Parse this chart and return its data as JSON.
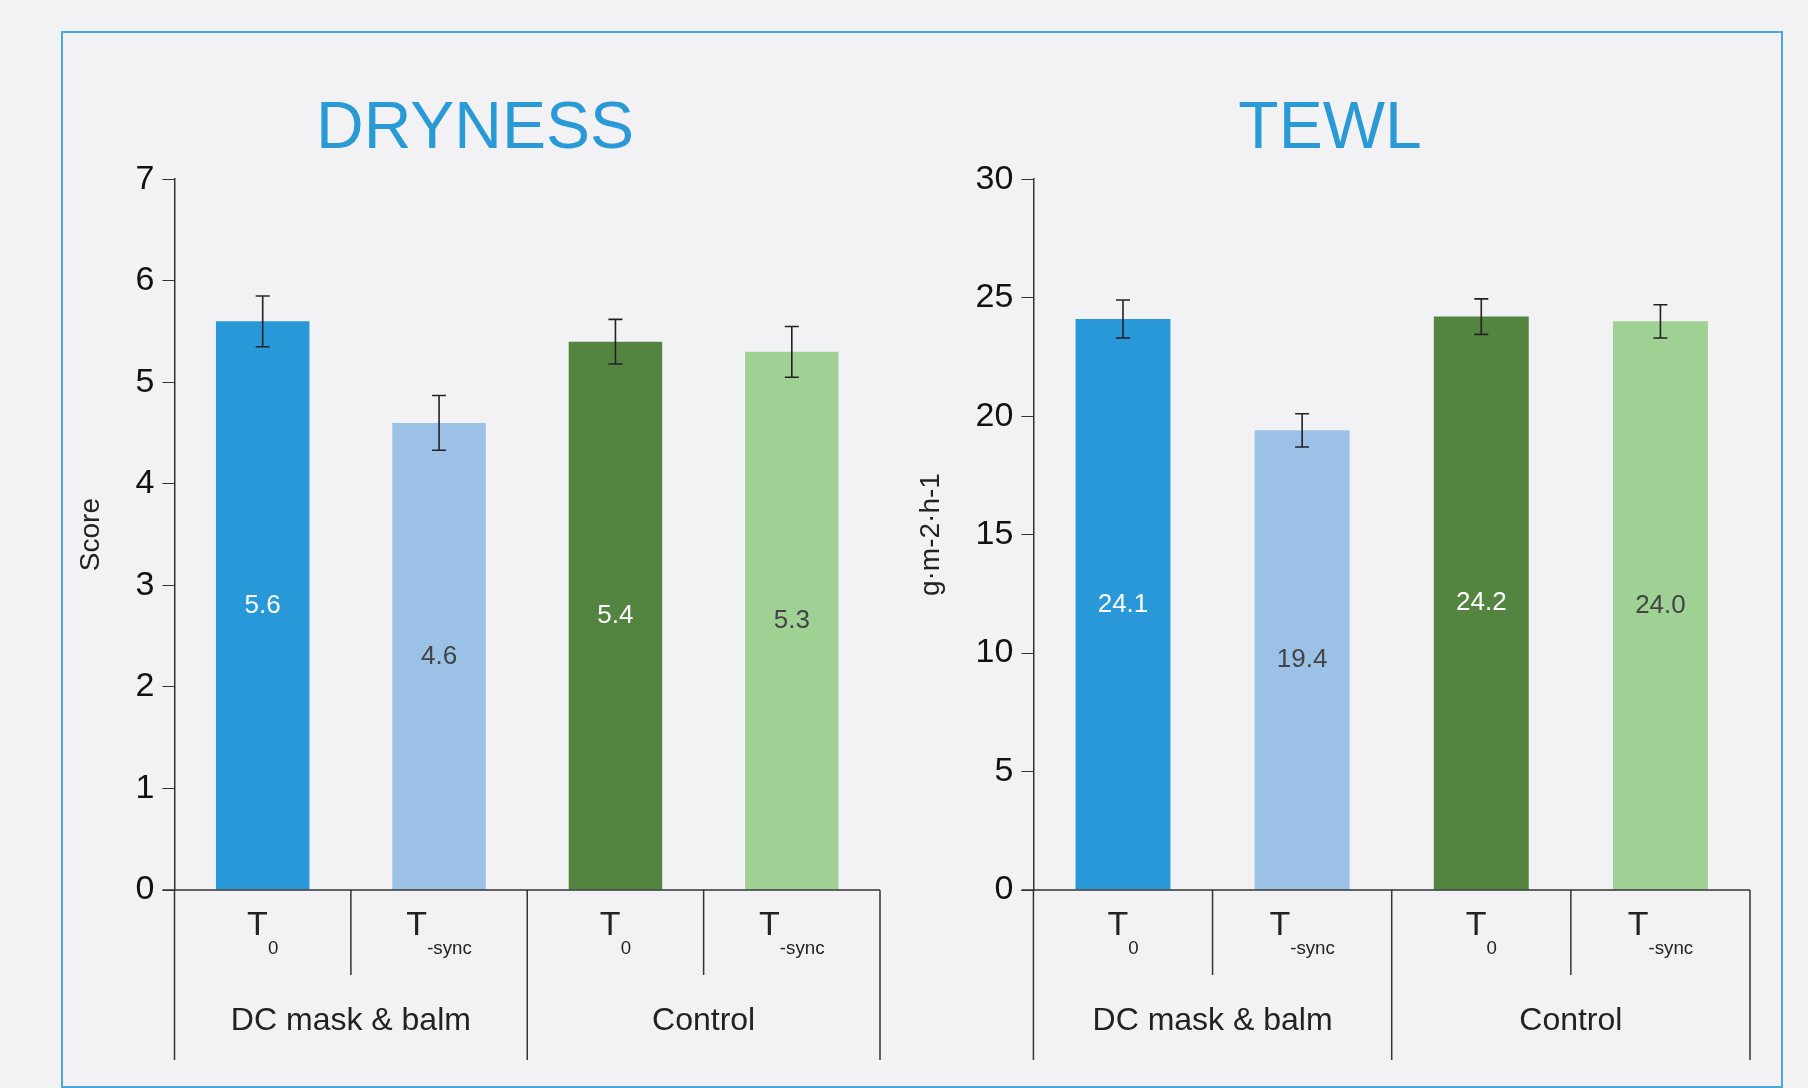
{
  "chart_data": [
    {
      "type": "bar",
      "title": "DRYNESS",
      "ylabel": "Score",
      "categories": [
        "T$_{0}$",
        "T$_{-sync}$",
        "T$_{0}$",
        "T$_{-sync}$"
      ],
      "values": [
        5.6,
        4.6,
        5.4,
        5.3
      ],
      "errors": [
        0.25,
        0.27,
        0.22,
        0.25
      ],
      "colors": [
        "#2998d8",
        "#9cc1e6",
        "#548540",
        "#9ed193"
      ],
      "ylim": [
        0,
        7
      ],
      "yticks": [
        0,
        1,
        2,
        3,
        4,
        5,
        6,
        7
      ],
      "data_labels": true,
      "annotations": [
        "DC mask & balm",
        "Control"
      ]
    },
    {
      "type": "bar",
      "title": "TEWL",
      "ylabel": "g·m-2·h-1",
      "categories": [
        "T$_{0}$",
        "T$_{-sync}$",
        "T$_{0}$",
        "T$_{-sync}$"
      ],
      "values": [
        24.1,
        19.4,
        24.2,
        24.0
      ],
      "value_labels": [
        "24.1",
        "19.4",
        "24.2",
        "24.0"
      ],
      "errors": [
        0.8,
        0.7,
        0.75,
        0.7
      ],
      "colors": [
        "#2998d8",
        "#9cc1e6",
        "#548540",
        "#9ed193"
      ],
      "ylim": [
        0,
        30
      ],
      "yticks": [
        0,
        5,
        10,
        15,
        20,
        25,
        30
      ],
      "annotations": [
        "DC mask & balm",
        "Control"
      ]
    }
  ]
}
